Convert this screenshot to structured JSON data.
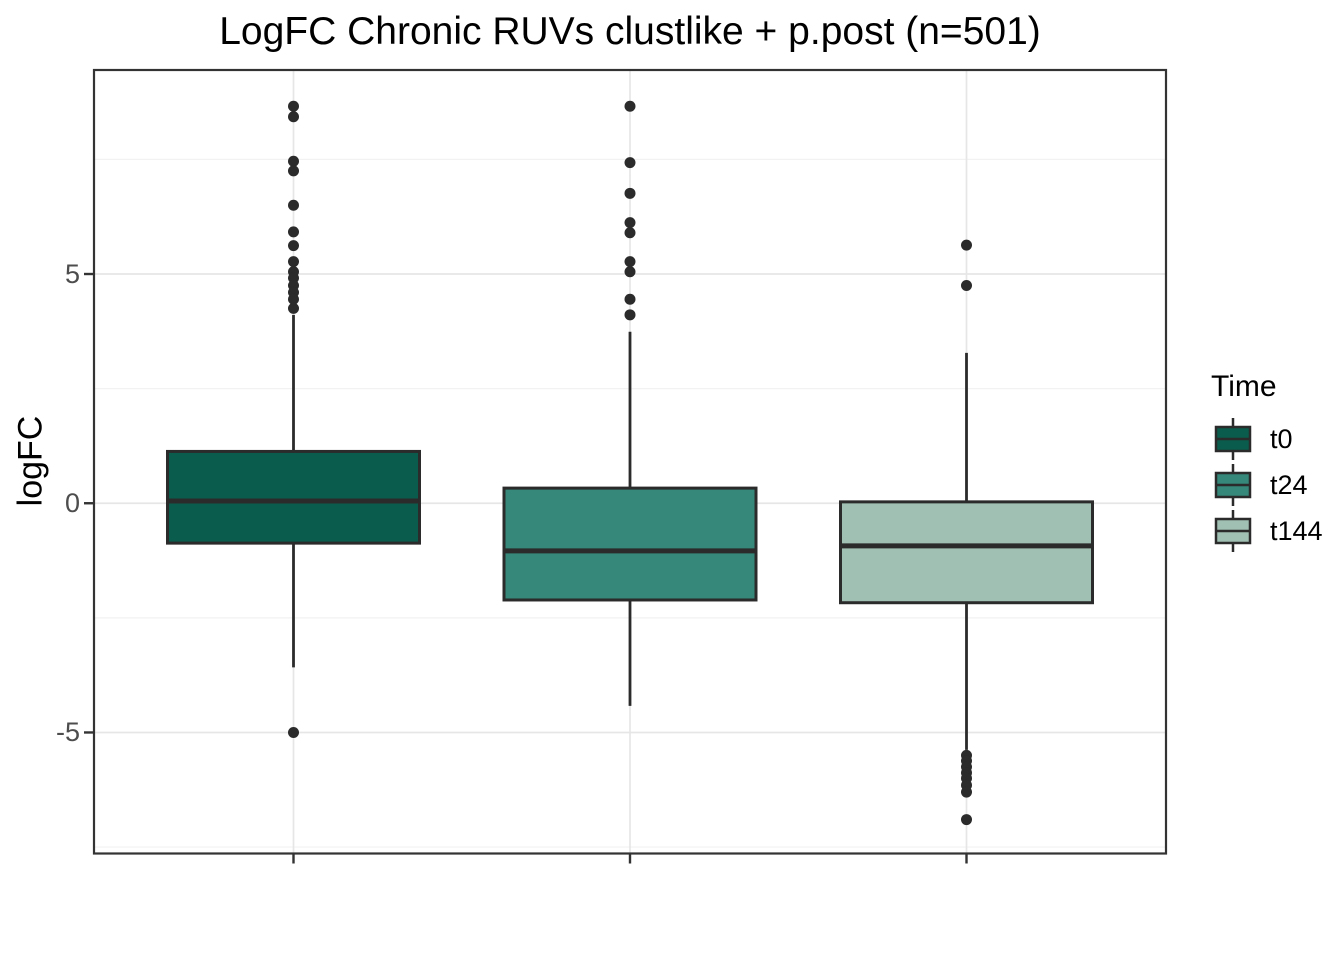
{
  "chart_data": {
    "type": "boxplot",
    "title": "LogFC Chronic RUVs clustlike + p.post (n=501)",
    "ylabel": "logFC",
    "xlabel": "",
    "grid": true,
    "legend": {
      "title": "Time",
      "position": "right"
    },
    "x_axis": {
      "categories": [
        "t0",
        "t24",
        "t144"
      ],
      "tick_labels_visible": false
    },
    "y_axis": {
      "range": [
        -7.64,
        9.45
      ],
      "ticks": [
        {
          "value": 5,
          "label": "5"
        },
        {
          "value": 0,
          "label": "0"
        },
        {
          "value": -5,
          "label": "-5"
        }
      ],
      "minor_ticks": [
        7.5,
        2.5,
        -2.5,
        -7.5
      ]
    },
    "groups": [
      {
        "name": "t0",
        "fill": "#0A5C4D",
        "stats": {
          "lower_whisker": -3.58,
          "q1": -0.87,
          "median": 0.05,
          "q3": 1.13,
          "upper_whisker": 4.11
        },
        "outliers": [
          8.66,
          8.43,
          7.46,
          7.25,
          6.5,
          5.92,
          5.62,
          5.27,
          5.05,
          4.91,
          4.75,
          4.6,
          4.45,
          4.25,
          -5.0
        ]
      },
      {
        "name": "t24",
        "fill": "#35887A",
        "stats": {
          "lower_whisker": -4.42,
          "q1": -2.11,
          "median": -1.04,
          "q3": 0.33,
          "upper_whisker": 3.74
        },
        "outliers": [
          8.66,
          7.43,
          6.76,
          6.12,
          5.9,
          5.27,
          5.05,
          4.45,
          4.11
        ]
      },
      {
        "name": "t144",
        "fill": "#9FC0B2",
        "stats": {
          "lower_whisker": -5.38,
          "q1": -2.17,
          "median": -0.93,
          "q3": 0.03,
          "upper_whisker": 3.28
        },
        "outliers": [
          5.63,
          4.75,
          -5.5,
          -5.62,
          -5.75,
          -5.88,
          -6.0,
          -6.15,
          -6.3,
          -6.9
        ]
      }
    ],
    "style": {
      "box_border": "#2B2B2B",
      "outlier_color": "#2B2B2B",
      "grid_major": "#E6E6E6",
      "grid_minor": "#F2F2F2",
      "panel_border": "#333333",
      "tick_mark": "#333333",
      "axis_text": "#4D4D4D"
    }
  }
}
